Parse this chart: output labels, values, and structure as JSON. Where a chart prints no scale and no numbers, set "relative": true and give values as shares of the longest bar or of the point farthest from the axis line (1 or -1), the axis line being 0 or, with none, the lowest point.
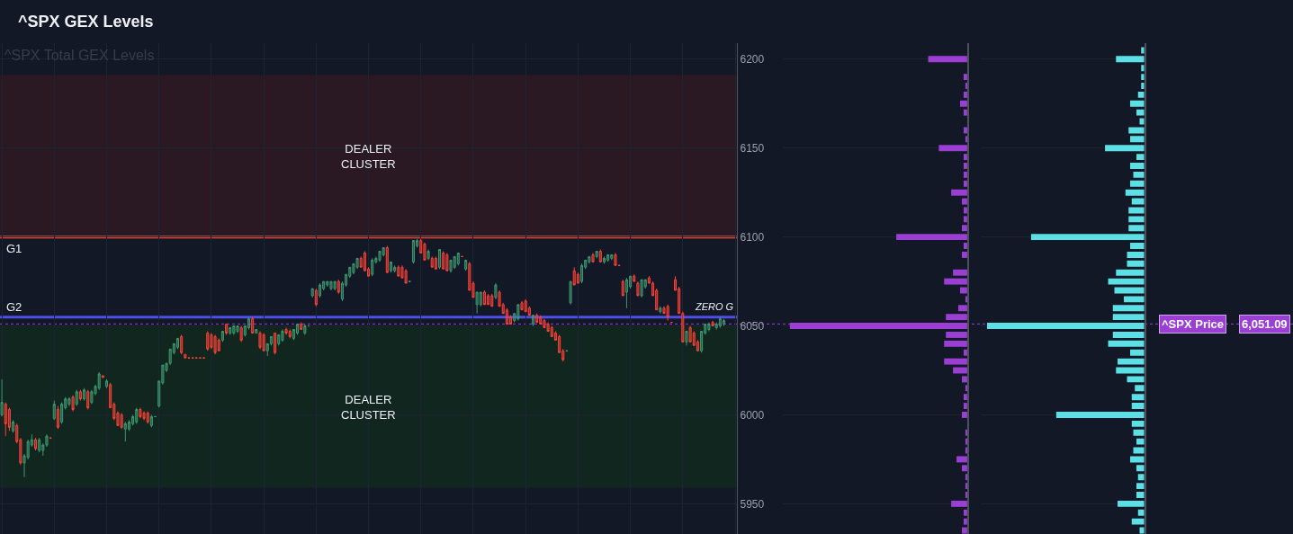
{
  "chart_data": [
    {
      "type": "candlestick",
      "title": "^SPX GEX Levels",
      "subtitle": "^SPX Total GEX Levels",
      "categories": [
        null,
        null,
        null,
        null,
        null,
        null,
        null,
        null,
        null,
        null,
        null,
        null,
        null,
        null,
        null,
        null,
        null,
        null,
        null,
        null,
        null,
        null,
        null,
        null,
        null,
        null,
        null,
        null,
        null,
        null,
        null,
        null,
        null,
        null,
        null,
        null,
        null,
        null,
        null,
        null,
        null,
        null,
        null,
        null,
        null,
        null,
        null,
        null,
        null,
        null,
        null,
        null,
        null,
        null,
        null,
        null,
        null,
        null,
        null,
        null,
        null,
        null,
        null,
        null,
        null,
        null,
        null,
        null,
        null,
        null,
        null,
        null,
        null,
        null,
        null,
        null,
        null,
        null,
        null,
        null,
        null,
        null,
        null,
        null,
        null,
        null,
        null,
        null,
        null,
        null,
        null,
        null,
        null,
        null,
        null,
        null,
        null,
        null,
        null,
        null,
        null,
        null,
        null,
        null,
        null,
        null,
        null,
        null,
        null,
        null,
        null,
        null,
        null,
        null,
        null,
        null,
        null,
        null,
        null,
        null,
        null,
        null,
        null,
        null,
        null,
        null,
        null,
        null,
        null,
        null,
        null,
        null,
        null,
        null,
        null,
        null,
        null,
        null,
        null,
        null,
        null,
        null,
        null,
        null,
        null,
        null,
        null,
        null,
        null,
        null,
        null,
        null,
        null,
        null,
        null,
        null,
        null,
        null,
        null,
        null,
        null,
        null,
        null,
        null,
        null,
        null,
        null,
        null,
        null,
        null,
        null,
        null,
        null,
        null,
        null,
        null,
        null,
        null,
        null,
        null,
        null,
        null,
        null,
        null,
        null,
        null,
        null,
        null,
        null,
        null,
        null,
        null,
        null,
        null,
        null,
        null,
        null
      ],
      "ohlc": [
        [
          6000,
          6020,
          5999,
          6007
        ],
        [
          6006,
          6007,
          5988,
          5995
        ],
        [
          6003,
          6004,
          5991,
          5993
        ],
        [
          5991,
          5997,
          5990,
          5996
        ],
        [
          5994,
          5995,
          5984,
          5985
        ],
        [
          5986,
          5987,
          5972,
          5973
        ],
        [
          5973,
          5978,
          5965,
          5977
        ],
        [
          5976,
          5986,
          5975,
          5985
        ],
        [
          5983,
          5989,
          5982,
          5986
        ],
        [
          5986,
          5987,
          5980,
          5981
        ],
        [
          5980,
          5987,
          5979,
          5986
        ],
        [
          5980,
          5984,
          5977,
          5983
        ],
        [
          5983,
          5989,
          5982,
          5988
        ],
        [
          5987,
          5987,
          5987,
          5987
        ],
        [
          5998,
          6008,
          5997,
          6006
        ],
        [
          6003,
          6005,
          5992,
          5993
        ],
        [
          5996,
          6007,
          5995,
          6006
        ],
        [
          6004,
          6010,
          6003,
          6009
        ],
        [
          6006,
          6010,
          6005,
          6009
        ],
        [
          6010,
          6011,
          6002,
          6003
        ],
        [
          6006,
          6014,
          6005,
          6013
        ],
        [
          6013,
          6014,
          6008,
          6009
        ],
        [
          6009,
          6015,
          6008,
          6014
        ],
        [
          6013,
          6014,
          6003,
          6004
        ],
        [
          6007,
          6014,
          6006,
          6013
        ],
        [
          6012,
          6017,
          6011,
          6016
        ],
        [
          6015,
          6024,
          6014,
          6023
        ],
        [
          6022,
          6022,
          6021,
          6021
        ],
        [
          6016,
          6020,
          6015,
          6019
        ],
        [
          6017,
          6018,
          6004,
          6004
        ],
        [
          6006,
          6007,
          5997,
          5998
        ],
        [
          6001,
          6002,
          5994,
          5994
        ],
        [
          6000,
          6001,
          5992,
          5993
        ],
        [
          5992,
          5996,
          5985,
          5995
        ],
        [
          5992,
          5997,
          5991,
          5996
        ],
        [
          5995,
          6000,
          5994,
          5999
        ],
        [
          5996,
          6004,
          5995,
          6003
        ],
        [
          6003,
          6004,
          5998,
          5999
        ],
        [
          6001,
          6002,
          5997,
          5998
        ],
        [
          6001,
          6002,
          5995,
          5996
        ],
        [
          5994,
          6000,
          5993,
          5999
        ],
        [
          5999,
          5999,
          5999,
          5999
        ],
        [
          6005,
          6019,
          6004,
          6019
        ],
        [
          6018,
          6028,
          6017,
          6028
        ],
        [
          6025,
          6029,
          6024,
          6029
        ],
        [
          6029,
          6037,
          6028,
          6037
        ],
        [
          6035,
          6040,
          6034,
          6040
        ],
        [
          6038,
          6043,
          6037,
          6043
        ],
        [
          6044,
          6045,
          6034,
          6035
        ],
        [
          6034,
          6034,
          6032,
          6032
        ],
        [
          6032,
          6032,
          6032,
          6032
        ],
        [
          6032,
          6032,
          6032,
          6032
        ],
        [
          6032,
          6032,
          6032,
          6032
        ],
        [
          6032,
          6032,
          6032,
          6032
        ],
        [
          6032,
          6032,
          6032,
          6032
        ],
        [
          6046,
          6047,
          6036,
          6037
        ],
        [
          6045,
          6046,
          6037,
          6038
        ],
        [
          6044,
          6045,
          6034,
          6035
        ],
        [
          6042,
          6043,
          6036,
          6036
        ],
        [
          6042,
          6047,
          6041,
          6047
        ],
        [
          6051,
          6051,
          6045,
          6046
        ],
        [
          6046,
          6049,
          6045,
          6049
        ],
        [
          6046,
          6050,
          6045,
          6050
        ],
        [
          6047,
          6050,
          6046,
          6050
        ],
        [
          6049,
          6050,
          6041,
          6042
        ],
        [
          6045,
          6050,
          6044,
          6050
        ],
        [
          6049,
          6055,
          6048,
          6054
        ],
        [
          6054,
          6055,
          6046,
          6046
        ],
        [
          6046,
          6048,
          6046,
          6048
        ],
        [
          6046,
          6047,
          6037,
          6038
        ],
        [
          6045,
          6046,
          6036,
          6036
        ],
        [
          6036,
          6040,
          6033,
          6040
        ],
        [
          6040,
          6044,
          6039,
          6044
        ],
        [
          6046,
          6046,
          6034,
          6035
        ],
        [
          6040,
          6045,
          6039,
          6045
        ],
        [
          6042,
          6048,
          6041,
          6047
        ],
        [
          6048,
          6049,
          6045,
          6046
        ],
        [
          6047,
          6048,
          6043,
          6044
        ],
        [
          6043,
          6048,
          6042,
          6048
        ],
        [
          6046,
          6051,
          6045,
          6051
        ],
        [
          6051,
          6052,
          6048,
          6048
        ],
        [
          6046,
          6051,
          6045,
          6050
        ],
        [
          6050,
          6050,
          6050,
          6050
        ],
        [
          6067,
          6071,
          6066,
          6071
        ],
        [
          6070,
          6071,
          6061,
          6062
        ],
        [
          6067,
          6074,
          6066,
          6073
        ],
        [
          6071,
          6075,
          6070,
          6075
        ],
        [
          6073,
          6075,
          6072,
          6075
        ],
        [
          6071,
          6075,
          6070,
          6075
        ],
        [
          6071,
          6075,
          6070,
          6075
        ],
        [
          6075,
          6076,
          6068,
          6069
        ],
        [
          6065,
          6075,
          6064,
          6074
        ],
        [
          6073,
          6079,
          6072,
          6079
        ],
        [
          6078,
          6083,
          6077,
          6083
        ],
        [
          6080,
          6085,
          6079,
          6085
        ],
        [
          6083,
          6088,
          6082,
          6088
        ],
        [
          6088,
          6089,
          6083,
          6083
        ],
        [
          6091,
          6092,
          6081,
          6081
        ],
        [
          6082,
          6083,
          6078,
          6078
        ],
        [
          6079,
          6088,
          6078,
          6087
        ],
        [
          6086,
          6089,
          6085,
          6088
        ],
        [
          6087,
          6092,
          6086,
          6092
        ],
        [
          6090,
          6094,
          6089,
          6094
        ],
        [
          6094,
          6095,
          6080,
          6080
        ],
        [
          6081,
          6086,
          6080,
          6086
        ],
        [
          6081,
          6084,
          6080,
          6083
        ],
        [
          6083,
          6084,
          6078,
          6078
        ],
        [
          6083,
          6084,
          6077,
          6077
        ],
        [
          6081,
          6082,
          6074,
          6074
        ],
        [
          6075,
          6075,
          6075,
          6075
        ],
        [
          6086,
          6098,
          6085,
          6098
        ],
        [
          6095,
          6099,
          6094,
          6098
        ],
        [
          6098,
          6099,
          6091,
          6091
        ],
        [
          6096,
          6097,
          6087,
          6087
        ],
        [
          6088,
          6093,
          6087,
          6092
        ],
        [
          6088,
          6089,
          6083,
          6083
        ],
        [
          6088,
          6089,
          6082,
          6082
        ],
        [
          6083,
          6093,
          6082,
          6093
        ],
        [
          6091,
          6092,
          6082,
          6082
        ],
        [
          6090,
          6091,
          6081,
          6081
        ],
        [
          6081,
          6087,
          6080,
          6087
        ],
        [
          6083,
          6089,
          6082,
          6089
        ],
        [
          6085,
          6091,
          6084,
          6091
        ],
        [
          6089,
          6089,
          6089,
          6089
        ],
        [
          6082,
          6087,
          6081,
          6087
        ],
        [
          6085,
          6086,
          6070,
          6070
        ],
        [
          6074,
          6075,
          6066,
          6066
        ],
        [
          6062,
          6069,
          6057,
          6069
        ],
        [
          6062,
          6069,
          6061,
          6069
        ],
        [
          6069,
          6070,
          6062,
          6062
        ],
        [
          6067,
          6068,
          6062,
          6062
        ],
        [
          6067,
          6068,
          6061,
          6061
        ],
        [
          6066,
          6074,
          6065,
          6073
        ],
        [
          6069,
          6070,
          6061,
          6061
        ],
        [
          6062,
          6063,
          6057,
          6057
        ],
        [
          6059,
          6060,
          6051,
          6051
        ],
        [
          6055,
          6056,
          6051,
          6051
        ],
        [
          6053,
          6057,
          6052,
          6057
        ],
        [
          6054,
          6062,
          6053,
          6062
        ],
        [
          6063,
          6064,
          6059,
          6059
        ],
        [
          6064,
          6065,
          6058,
          6058
        ],
        [
          6060,
          6061,
          6056,
          6056
        ],
        [
          6051,
          6056,
          6050,
          6056
        ],
        [
          6056,
          6057,
          6052,
          6052
        ],
        [
          6055,
          6056,
          6051,
          6051
        ],
        [
          6053,
          6054,
          6049,
          6049
        ],
        [
          6051,
          6052,
          6047,
          6047
        ],
        [
          6049,
          6050,
          6044,
          6044
        ],
        [
          6046,
          6047,
          6042,
          6042
        ],
        [
          6044,
          6045,
          6035,
          6035
        ],
        [
          6036,
          6037,
          6030,
          6031
        ],
        [
          6036,
          6036,
          6036,
          6036
        ],
        [
          6063,
          6075,
          6062,
          6075
        ],
        [
          6081,
          6083,
          6073,
          6073
        ],
        [
          6079,
          6080,
          6074,
          6074
        ],
        [
          6075,
          6085,
          6074,
          6084
        ],
        [
          6083,
          6087,
          6082,
          6087
        ],
        [
          6086,
          6089,
          6085,
          6089
        ],
        [
          6090,
          6091,
          6086,
          6086
        ],
        [
          6089,
          6092,
          6088,
          6092
        ],
        [
          6092,
          6093,
          6086,
          6086
        ],
        [
          6086,
          6089,
          6085,
          6088
        ],
        [
          6087,
          6090,
          6086,
          6090
        ],
        [
          6088,
          6090,
          6087,
          6090
        ],
        [
          6090,
          6091,
          6084,
          6084
        ],
        [
          6084,
          6084,
          6084,
          6084
        ],
        [
          6075,
          6076,
          6067,
          6067
        ],
        [
          6069,
          6077,
          6060,
          6076
        ],
        [
          6072,
          6078,
          6071,
          6078
        ],
        [
          6078,
          6079,
          6075,
          6075
        ],
        [
          6074,
          6075,
          6067,
          6067
        ],
        [
          6067,
          6076,
          6066,
          6076
        ],
        [
          6072,
          6076,
          6071,
          6076
        ],
        [
          6077,
          6078,
          6074,
          6074
        ],
        [
          6074,
          6075,
          6067,
          6067
        ],
        [
          6070,
          6071,
          6059,
          6059
        ],
        [
          6058,
          6061,
          6057,
          6060
        ],
        [
          6060,
          6061,
          6057,
          6057
        ],
        [
          6061,
          6062,
          6053,
          6055
        ],
        [
          6052,
          6052,
          6052,
          6052
        ],
        [
          6076,
          6078,
          6070,
          6070
        ],
        [
          6071,
          6072,
          6057,
          6057
        ],
        [
          6057,
          6058,
          6041,
          6041
        ],
        [
          6041,
          6047,
          6039,
          6047
        ],
        [
          6049,
          6050,
          6041,
          6041
        ],
        [
          6046,
          6047,
          6039,
          6039
        ],
        [
          6041,
          6042,
          6036,
          6036
        ],
        [
          6036,
          6047,
          6035,
          6047
        ],
        [
          6046,
          6051,
          6045,
          6051
        ],
        [
          6048,
          6052,
          6047,
          6051
        ],
        [
          6052,
          6053,
          6050,
          6050
        ],
        [
          6049,
          6052,
          6048,
          6051
        ],
        [
          6050,
          6055,
          6049,
          6054
        ],
        [
          6051,
          6054,
          6050,
          6053
        ],
        null,
        null,
        null
      ],
      "ylim": [
        5933,
        6209
      ],
      "yticks": [
        5950,
        6000,
        6050,
        6100,
        6150,
        6200
      ],
      "grid": true,
      "tick_labels": "y",
      "bands": [
        {
          "axis": "y",
          "from": 6100,
          "to": 6191,
          "label": "DEALER\nCLUSTER",
          "color": "#2a1823"
        },
        {
          "axis": "y",
          "from": 5959,
          "to": 6050,
          "label": "DEALER\nCLUSTER",
          "color": "#10261f"
        }
      ],
      "ref_lines": [
        {
          "axis": "y",
          "value": 6100,
          "label": "G1",
          "color": "#e04b3c",
          "line_style": "solid"
        },
        {
          "axis": "y",
          "value": 6055,
          "label": "G2",
          "color": "#4d4de8",
          "line_style": "solid"
        },
        {
          "axis": "y",
          "value": 6051.09,
          "label": "^SPX Price",
          "color": "#9b3fd4",
          "line_style": "dotted"
        }
      ],
      "annotations": [
        {
          "text": "ZERO G",
          "y": 6055
        },
        {
          "text": "6,051.09",
          "y": 6051.09
        }
      ]
    },
    {
      "type": "bar",
      "orientation": "horizontal",
      "relative": true,
      "tick_labels": false,
      "grid": "y",
      "x": [
        6205,
        6200,
        6195,
        6190,
        6185,
        6180,
        6175,
        6170,
        6165,
        6160,
        6155,
        6150,
        6145,
        6140,
        6135,
        6130,
        6125,
        6120,
        6115,
        6110,
        6105,
        6100,
        6095,
        6090,
        6085,
        6080,
        6075,
        6070,
        6065,
        6060,
        6055,
        6050,
        6045,
        6040,
        6035,
        6030,
        6025,
        6020,
        6015,
        6010,
        6005,
        6000,
        5995,
        5990,
        5985,
        5980,
        5975,
        5970,
        5965,
        5960,
        5955,
        5950,
        5945,
        5940,
        5935
      ],
      "ylim": [
        5933,
        6209
      ],
      "yticks": [
        5950,
        6000,
        6050,
        6100,
        6150,
        6200
      ],
      "series": [
        {
          "color": "#9b3fd4",
          "values": [
            0,
            -0.22,
            0,
            -0.02,
            -0.01,
            -0.02,
            -0.04,
            -0.02,
            0,
            -0.02,
            -0.01,
            -0.16,
            -0.02,
            -0.02,
            -0.02,
            -0.02,
            -0.09,
            -0.03,
            -0.02,
            -0.02,
            -0.03,
            -0.4,
            -0.02,
            -0.03,
            0,
            -0.08,
            -0.13,
            -0.04,
            -0.01,
            -0.05,
            -0.12,
            -1,
            -0.12,
            -0.13,
            -0.02,
            -0.13,
            -0.08,
            -0.03,
            -0.01,
            -0.02,
            -0.02,
            -0.03,
            0,
            -0.01,
            -0.01,
            -0.01,
            -0.06,
            -0.03,
            -0.01,
            -0.01,
            -0.01,
            -0.09,
            -0.02,
            -0.02,
            -0.03
          ]
        }
      ]
    },
    {
      "type": "bar",
      "orientation": "horizontal",
      "relative": true,
      "tick_labels": false,
      "grid": "y",
      "x": [
        6205,
        6200,
        6195,
        6190,
        6185,
        6180,
        6175,
        6170,
        6165,
        6160,
        6155,
        6150,
        6145,
        6140,
        6135,
        6130,
        6125,
        6120,
        6115,
        6110,
        6105,
        6100,
        6095,
        6090,
        6085,
        6080,
        6075,
        6070,
        6065,
        6060,
        6055,
        6050,
        6045,
        6040,
        6035,
        6030,
        6025,
        6020,
        6015,
        6010,
        6005,
        6000,
        5995,
        5990,
        5985,
        5980,
        5975,
        5970,
        5965,
        5960,
        5955,
        5950,
        5945,
        5940,
        5935
      ],
      "ylim": [
        5933,
        6209
      ],
      "yticks": [
        5950,
        6000,
        6050,
        6100,
        6150,
        6200
      ],
      "series": [
        {
          "color": "#5ddfe6",
          "values": [
            -0.02,
            -0.18,
            -0.02,
            -0.02,
            -0.02,
            -0.04,
            -0.09,
            -0.05,
            -0.03,
            -0.1,
            -0.09,
            -0.25,
            -0.05,
            -0.09,
            -0.07,
            -0.09,
            -0.12,
            -0.08,
            -0.1,
            -0.1,
            -0.1,
            -0.72,
            -0.09,
            -0.11,
            -0.11,
            -0.18,
            -0.23,
            -0.19,
            -0.13,
            -0.2,
            -0.2,
            -1,
            -0.2,
            -0.23,
            -0.09,
            -0.17,
            -0.18,
            -0.11,
            -0.06,
            -0.08,
            -0.08,
            -0.56,
            -0.08,
            -0.07,
            -0.05,
            -0.07,
            -0.09,
            -0.05,
            -0.04,
            -0.05,
            -0.05,
            -0.17,
            -0.04,
            -0.08,
            -0.03
          ]
        }
      ]
    }
  ]
}
